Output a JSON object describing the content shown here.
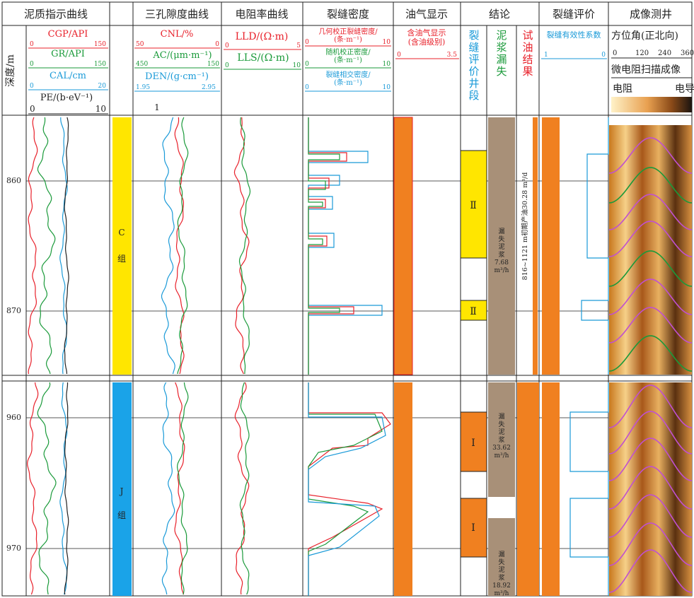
{
  "tracks": {
    "lith": "泥质指示曲线",
    "poro": "三孔隙度曲线",
    "res": "电阻率曲线",
    "frac": "裂缝密度",
    "oil": "油气显示",
    "concl": "结论",
    "eval": "裂缝评价",
    "img": "成像测井"
  },
  "depth_label": "深度/m",
  "curves": {
    "cgp": "CGP/API",
    "cgp_min": "0",
    "cgp_max": "150",
    "gr": "GR/API",
    "gr_min": "0",
    "gr_max": "150",
    "cal": "CAL/cm",
    "cal_min": "0",
    "cal_max": "20",
    "pe": "PE/(b·eV⁻¹)",
    "pe_min": "0",
    "pe_max": "10",
    "cnl": "CNL/%",
    "cnl_min": "50",
    "cnl_max": "0",
    "ac": "AC/(μm·m⁻¹)",
    "ac_min": "450",
    "ac_max": "150",
    "den": "DEN/(g·cm⁻¹)",
    "den_min": "1.95",
    "den_max": "2.95",
    "den_one": "1",
    "lld": "LLD/(Ω·m)",
    "lld_min": "0",
    "lld_max": "5",
    "lls": "LLS/(Ω·m)",
    "lls_min": "0",
    "lls_max": "10",
    "f1a": "几何校正裂缝密度/",
    "f1b": "(条·m⁻¹)",
    "f1min": "0",
    "f1max": "10",
    "f2a": "随机校正密度/",
    "f2b": "(条·m⁻¹)",
    "f2min": "0",
    "f2max": "10",
    "f3a": "裂缝相交密度/",
    "f3b": "(条·m⁻¹)",
    "f3min": "0",
    "f3max": "10",
    "oil_a": "含油气显示",
    "oil_b": "(含油级别)",
    "oil_min": "0",
    "oil_max": "3.5",
    "eval_lbl": "裂缝有效性系数",
    "eval_min": "1",
    "eval_max": "0",
    "img1": "方位角(正北向)",
    "img_t0": "0",
    "img_t1": "120",
    "img_t2": "240",
    "img_t3": "360",
    "img2": "微电阻扫描成像",
    "img_lo": "电阻",
    "img_hi": "电导"
  },
  "concl_heads": {
    "a": "裂缝评价井段",
    "b": "泥浆漏失",
    "c": "试油结果"
  },
  "depths_top": [
    "860",
    "870"
  ],
  "depths_bot": [
    "960",
    "970"
  ],
  "group_top": {
    "l1": "C",
    "l2": "组"
  },
  "group_bot": {
    "l1": "J",
    "l2": "组"
  },
  "grade_labels": [
    "Ⅱ",
    "Ⅱ",
    "Ⅰ",
    "Ⅰ"
  ],
  "mud_top": [
    "漏",
    "失",
    "泥",
    "浆",
    "7.68",
    "m³/h"
  ],
  "mud_b1": [
    "漏",
    "失",
    "泥",
    "浆",
    "33.62",
    "m³/h"
  ],
  "mud_b2": [
    "漏",
    "失",
    "泥",
    "浆",
    "18.92",
    "m³/h"
  ],
  "oil_test": "816~1121 m初期产油30.28 m³/d",
  "colors": {
    "c_group": "#ffe600",
    "j_group": "#1aa3e8",
    "oil": "#f08020",
    "mud": "#a89078",
    "red": "#e8202a",
    "green": "#1a9a3a",
    "blue": "#1a9ad8",
    "grade": "#ffe600",
    "grade_b": "#f08020"
  }
}
